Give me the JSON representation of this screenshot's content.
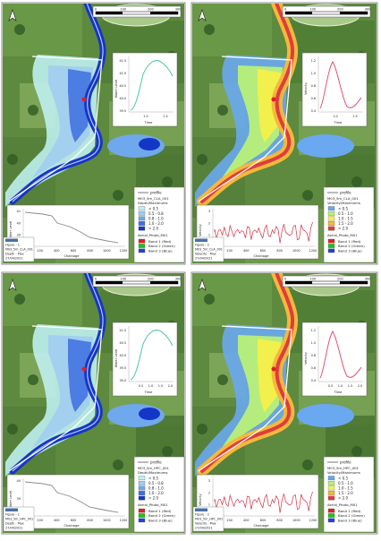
{
  "panels": [
    {
      "id": "p1",
      "scale_labels": [
        "0",
        "100",
        "200",
        "300"
      ],
      "figure_label": [
        "Figure - 1",
        "M03_5m_CLA_001",
        "Depth - Max",
        "27/04/2021"
      ],
      "insets": [
        {
          "ylabel": "Water Level",
          "xlabel": "Time",
          "yticks": [
            "41.5",
            "41.0",
            "40.5",
            "40.0",
            "39.5"
          ],
          "xticks": [
            "1.0",
            "1.5"
          ]
        },
        {
          "ylabel": "Water Level",
          "xlabel": "Chainage",
          "yticks": [
            "41",
            "40",
            "39",
            "38"
          ],
          "xticks": [
            "0",
            "200",
            "400",
            "600",
            "800",
            "1000",
            "1200"
          ]
        }
      ],
      "legend": {
        "profile": "profile",
        "title": "M03_5m_CLA_001",
        "subtitle": "Depth/Maximums",
        "items": [
          "< 0.5",
          "0.5 - 0.8",
          "0.8 - 1.0",
          "1.0 - 2.0",
          "> 2.0"
        ],
        "colors": [
          "#bfeff0",
          "#a0cdf0",
          "#6fa8ec",
          "#3c6fe0",
          "#1436c8"
        ],
        "aerial_title": "Aerial_Photo_M01",
        "bands": [
          "Band 1 (Red)",
          "Band 2 (Green)",
          "Band 3 (Blue)"
        ],
        "band_colors": [
          "#e02020",
          "#20c020",
          "#2040e0"
        ]
      }
    },
    {
      "id": "p2",
      "scale_labels": [
        "0",
        "100",
        "200",
        "300"
      ],
      "figure_label": [
        "Figure - 2",
        "M03_5m_CLA_001",
        "Velocity - Max",
        "27/04/2021"
      ],
      "insets": [
        {
          "ylabel": "Velocity",
          "xlabel": "Time",
          "yticks": [
            "1.2",
            "1.0",
            "0.8",
            "0.6",
            "0.4"
          ],
          "xticks": [
            "1.0",
            "1.5"
          ]
        },
        {
          "ylabel": "Velocity",
          "xlabel": "Chainage",
          "yticks": [
            "3",
            "2",
            "1",
            "0"
          ],
          "xticks": [
            "0",
            "200",
            "400",
            "600",
            "800",
            "1000",
            "1200"
          ]
        }
      ],
      "legend": {
        "profile": "profile",
        "title": "M03_5m_CLA_001",
        "subtitle": "Velocity/Maximums",
        "items": [
          "< 0.5",
          "0.5 - 1.0",
          "1.0 - 1.5",
          "1.5 - 2.0",
          "> 2.0"
        ],
        "colors": [
          "#6aa8f0",
          "#b8f078",
          "#f5f04a",
          "#f5b83c",
          "#e03c3c"
        ],
        "aerial_title": "Aerial_Photo_M01",
        "bands": [
          "Band 1 (Red)",
          "Band 2 (Green)",
          "Band 3 (Blue)"
        ],
        "band_colors": [
          "#e02020",
          "#20c020",
          "#2040e0"
        ]
      }
    },
    {
      "id": "p3",
      "scale_labels": [
        "0",
        "100",
        "200",
        "300"
      ],
      "figure_label": [
        "Figure - 1",
        "M03_5m_HPC_001",
        "Depth - Max",
        "27/04/2021"
      ],
      "insets": [
        {
          "ylabel": "Water Level",
          "xlabel": "Time",
          "yticks": [
            "41.0",
            "40.5",
            "40.0",
            "39.5",
            "39.0"
          ],
          "xticks": [
            "0.5",
            "1.0",
            "1.5",
            "2.0"
          ]
        },
        {
          "ylabel": "Water Level",
          "xlabel": "Chainage",
          "yticks": [
            "40",
            "39",
            "38"
          ],
          "xticks": [
            "0",
            "200",
            "400",
            "600",
            "800",
            "1000",
            "1200"
          ]
        }
      ],
      "legend": {
        "profile": "profile",
        "title": "M03_5m_HPC_001",
        "subtitle": "Depth/Maximums",
        "items": [
          "< 0.5",
          "0.5 - 0.8",
          "0.8 - 1.0",
          "1.0 - 2.0",
          "> 2.0"
        ],
        "colors": [
          "#bfeff0",
          "#a0cdf0",
          "#6fa8ec",
          "#3c6fe0",
          "#1436c8"
        ],
        "aerial_title": "Aerial_Photo_M01",
        "bands": [
          "Band 1 (Red)",
          "Band 2 (Green)",
          "Band 3 (Blue)"
        ],
        "band_colors": [
          "#e02020",
          "#20c020",
          "#2040e0"
        ]
      }
    },
    {
      "id": "p4",
      "scale_labels": [
        "0",
        "100",
        "200",
        "300"
      ],
      "figure_label": [
        "Figure - 2",
        "M03_5m_HPC_001",
        "Velocity - Max",
        "27/04/2021"
      ],
      "insets": [
        {
          "ylabel": "Velocity",
          "xlabel": "Time",
          "yticks": [
            "1.2",
            "1.0",
            "0.8",
            "0.6",
            "0.4"
          ],
          "xticks": [
            "0.5",
            "1.0",
            "1.5",
            "2.0"
          ]
        },
        {
          "ylabel": "Velocity",
          "xlabel": "Chainage",
          "yticks": [
            "3",
            "2",
            "1",
            "0"
          ],
          "xticks": [
            "0",
            "200",
            "400",
            "600",
            "800",
            "1000",
            "1200"
          ]
        }
      ],
      "legend": {
        "profile": "profile",
        "title": "M03_5m_HPC_001",
        "subtitle": "Velocity/Maximums",
        "items": [
          "< 0.5",
          "0.5 - 1.0",
          "1.0 - 1.5",
          "1.5 - 2.0",
          "> 2.0"
        ],
        "colors": [
          "#6aa8f0",
          "#b8f078",
          "#f5f04a",
          "#f5b83c",
          "#e03c3c"
        ],
        "aerial_title": "Aerial_Photo_M01",
        "bands": [
          "Band 1 (Red)",
          "Band 2 (Green)",
          "Band 3 (Blue)"
        ],
        "band_colors": [
          "#e02020",
          "#20c020",
          "#2040e0"
        ]
      }
    }
  ]
}
